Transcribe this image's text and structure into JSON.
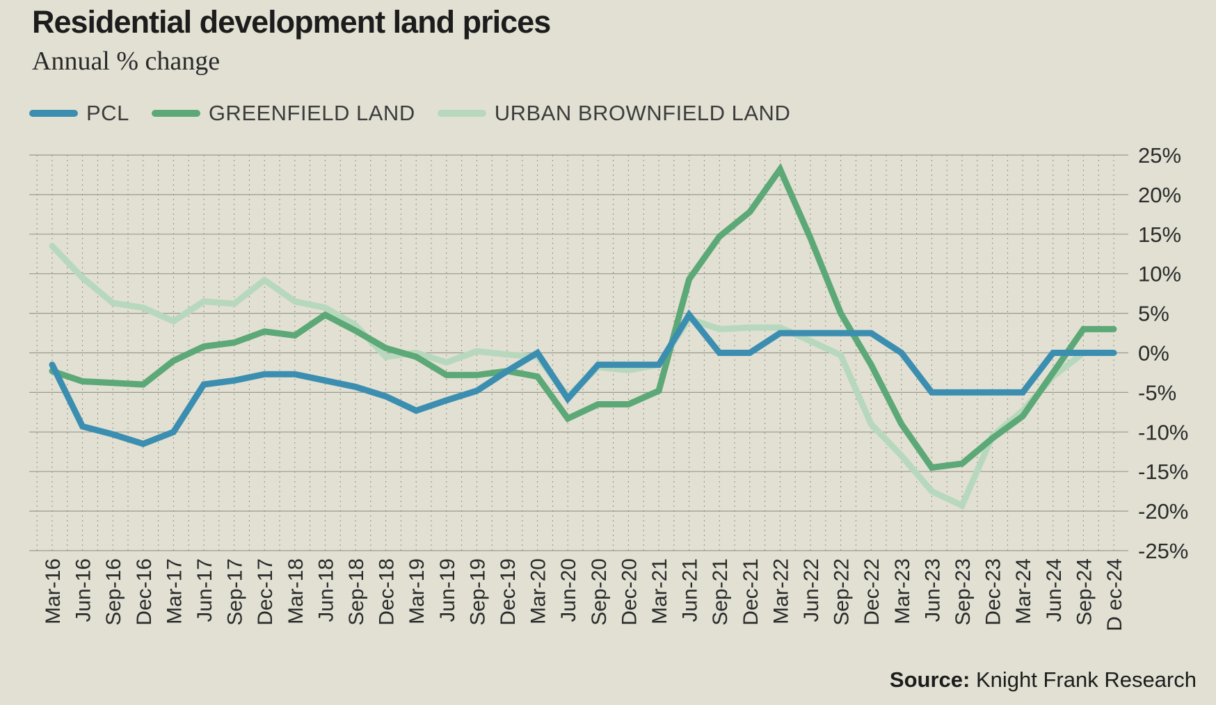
{
  "header": {
    "title": "Residential development land prices",
    "subtitle": "Annual % change"
  },
  "source": {
    "label": "Source:",
    "text": "Knight Frank Research"
  },
  "chart_data": {
    "type": "line",
    "title": "Residential development land prices",
    "subtitle": "Annual % change",
    "x": [
      "Mar-16",
      "Jun-16",
      "Sep-16",
      "Dec-16",
      "Mar-17",
      "Jun-17",
      "Sep-17",
      "Dec-17",
      "Mar-18",
      "Jun-18",
      "Sep-18",
      "Dec-18",
      "Mar-19",
      "Jun-19",
      "Sep-19",
      "Dec-19",
      "Mar-20",
      "Jun-20",
      "Sep-20",
      "Dec-20",
      "Mar-21",
      "Jun-21",
      "Sep-21",
      "Dec-21",
      "Mar-22",
      "Jun-22",
      "Sep-22",
      "Dec-22",
      "Mar-23",
      "Jun-23",
      "Sep-23",
      "Dec-23",
      "Mar-24",
      "Jun-24",
      "Sep-24",
      "D ec-24"
    ],
    "ylim": [
      -25,
      25
    ],
    "yticks": [
      25,
      20,
      15,
      10,
      5,
      0,
      -5,
      -10,
      -15,
      -20,
      -25
    ],
    "ytick_labels": [
      "25%",
      "20%",
      "15%",
      "10%",
      "5%",
      "0%",
      "-5%",
      "-10%",
      "-15%",
      "-20%",
      "-25%"
    ],
    "y_axis_position": "right",
    "grid": true,
    "legend_position": "top-left",
    "series": [
      {
        "name": "PCL",
        "color": "#3b8eb0",
        "values": [
          -1.5,
          -9.3,
          -10.3,
          -11.5,
          -10.0,
          -4.0,
          -3.5,
          -2.7,
          -2.7,
          -3.5,
          -4.3,
          -5.5,
          -7.3,
          -6.0,
          -4.8,
          -2.3,
          0.0,
          -5.8,
          -1.5,
          -1.5,
          -1.5,
          4.8,
          0.0,
          0.0,
          2.5,
          2.5,
          2.5,
          2.5,
          0.0,
          -5.0,
          -5.0,
          -5.0,
          -5.0,
          0.0,
          0.0,
          0.0
        ]
      },
      {
        "name": "GREENFIELD LAND",
        "color": "#5ca877",
        "values": [
          -2.3,
          -3.6,
          -3.8,
          -4.0,
          -1.0,
          0.8,
          1.3,
          2.7,
          2.2,
          4.8,
          2.8,
          0.6,
          -0.5,
          -2.8,
          -2.8,
          -2.3,
          -3.0,
          -8.3,
          -6.5,
          -6.5,
          -4.8,
          9.3,
          14.7,
          17.8,
          23.2,
          14.5,
          5.0,
          -1.5,
          -9.0,
          -14.5,
          -14.0,
          -10.8,
          -8.0,
          -2.5,
          3.0,
          3.0
        ]
      },
      {
        "name": "URBAN BROWNFIELD LAND",
        "color": "#b8d8bd",
        "values": [
          13.5,
          9.5,
          6.3,
          5.7,
          4.0,
          6.5,
          6.2,
          9.2,
          6.5,
          5.7,
          3.5,
          -0.5,
          0.0,
          -1.2,
          0.2,
          -0.2,
          -0.5,
          -5.5,
          -1.8,
          -2.2,
          -1.5,
          4.3,
          3.0,
          3.2,
          3.2,
          1.5,
          -0.3,
          -9.0,
          -13.0,
          -17.5,
          -19.3,
          -10.5,
          -7.3,
          -3.0,
          0.0,
          0.0
        ]
      }
    ]
  }
}
